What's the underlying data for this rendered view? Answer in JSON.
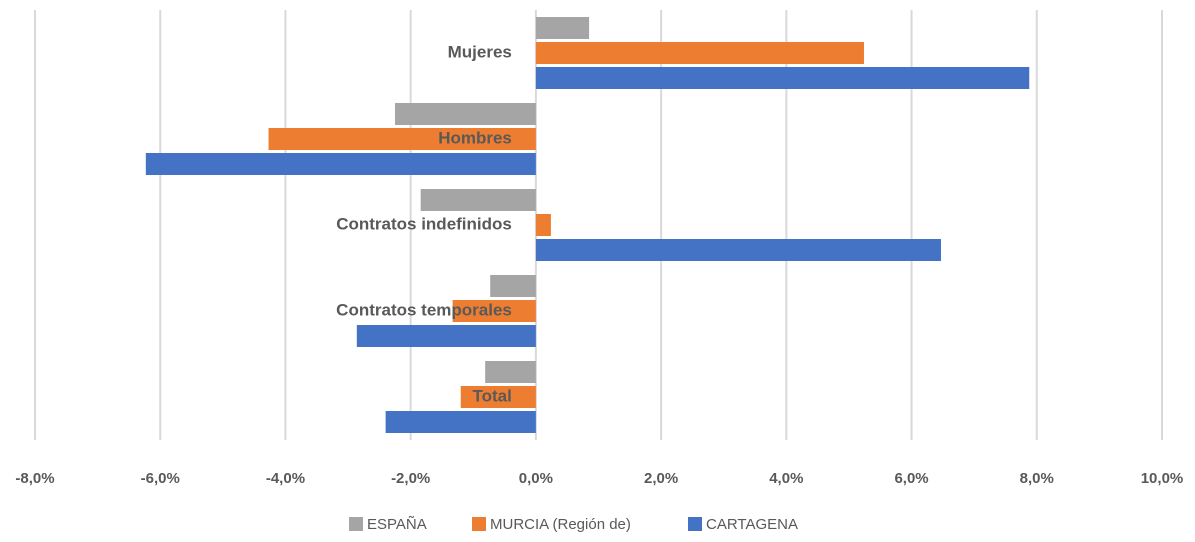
{
  "chart_data": {
    "type": "hbar",
    "categories": [
      "Mujeres",
      "Hombres",
      "Contratos indefinidos",
      "Contratos temporales",
      "Total"
    ],
    "series": [
      {
        "name": "ESPAÑA",
        "color": "#a5a5a5",
        "values": [
          0.85,
          -2.25,
          -1.84,
          -0.73,
          -0.81
        ]
      },
      {
        "name": "MURCIA (Región de)",
        "color": "#ed7d31",
        "values": [
          5.24,
          -4.27,
          0.24,
          -1.33,
          -1.2
        ]
      },
      {
        "name": "CARTAGENA",
        "color": "#4472c4",
        "values": [
          7.88,
          -6.23,
          6.47,
          -2.86,
          -2.4
        ]
      }
    ],
    "xlim": [
      -8,
      10
    ],
    "xticks": [
      {
        "value": -8,
        "label": "-8,0%"
      },
      {
        "value": -6,
        "label": "-6,0%"
      },
      {
        "value": -4,
        "label": "-4,0%"
      },
      {
        "value": -2,
        "label": "-2,0%"
      },
      {
        "value": 0,
        "label": "0,0%"
      },
      {
        "value": 2,
        "label": "2,0%"
      },
      {
        "value": 4,
        "label": "4,0%"
      },
      {
        "value": 6,
        "label": "6,0%"
      },
      {
        "value": 8,
        "label": "8,0%"
      },
      {
        "value": 10,
        "label": "10,0%"
      }
    ],
    "grid": true,
    "legend": "bottom"
  }
}
